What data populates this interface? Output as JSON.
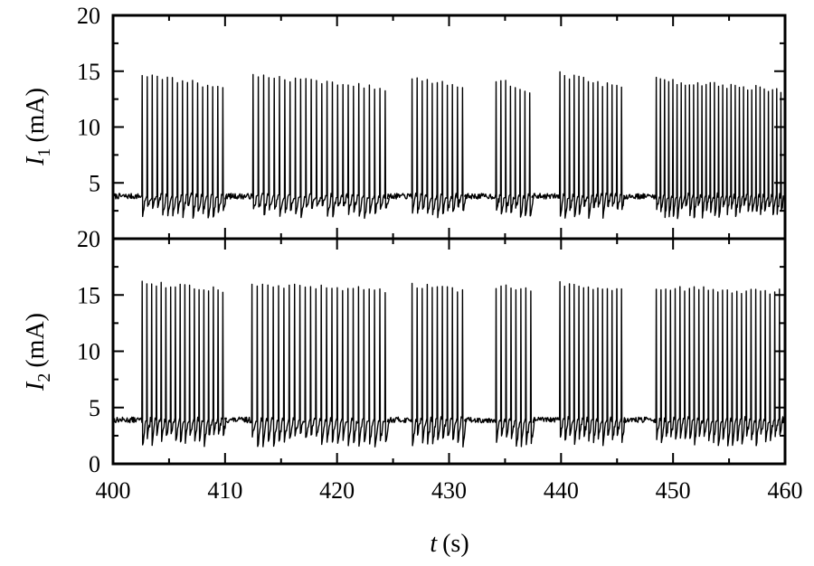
{
  "chart_data": [
    {
      "type": "line",
      "panel": "top",
      "ylabel": {
        "symbol": "I",
        "subscript": "1",
        "unit": "(mA)"
      },
      "xlim": [
        400,
        460
      ],
      "ylim": [
        0,
        20
      ],
      "yticks": [
        20,
        15,
        10,
        5
      ],
      "ytick_labels": [
        "20",
        "15",
        "10",
        "5"
      ],
      "baseline": 3.8,
      "spike_peak_range": [
        12.5,
        15.0
      ],
      "spike_trough": 1.8,
      "bursts": [
        {
          "start": 402.6,
          "end": 409.8,
          "spikes": 17,
          "peak": 14.7
        },
        {
          "start": 412.5,
          "end": 424.3,
          "spikes": 26,
          "peak": 14.6
        },
        {
          "start": 426.7,
          "end": 431.2,
          "spikes": 11,
          "peak": 14.5
        },
        {
          "start": 434.2,
          "end": 437.2,
          "spikes": 8,
          "peak": 14.2
        },
        {
          "start": 439.9,
          "end": 445.4,
          "spikes": 14,
          "peak": 14.7
        },
        {
          "start": 448.5,
          "end": 460.0,
          "spikes": 32,
          "peak": 14.2
        }
      ]
    },
    {
      "type": "line",
      "panel": "bottom",
      "ylabel": {
        "symbol": "I",
        "subscript": "2",
        "unit": "(mA)"
      },
      "xlabel": {
        "symbol": "t",
        "unit": "(s)"
      },
      "xlim": [
        400,
        460
      ],
      "ylim": [
        0,
        20
      ],
      "xticks": [
        400,
        410,
        420,
        430,
        440,
        450,
        460
      ],
      "xtick_labels": [
        "400",
        "410",
        "420",
        "430",
        "440",
        "450",
        "460"
      ],
      "yticks": [
        20,
        15,
        10,
        5,
        0
      ],
      "ytick_labels": [
        "20",
        "15",
        "10",
        "5",
        "0"
      ],
      "baseline": 3.9,
      "spike_peak_range": [
        15.0,
        16.3
      ],
      "spike_trough": 1.5,
      "bursts": [
        {
          "start": 402.6,
          "end": 409.8,
          "spikes": 18,
          "peak": 16.0
        },
        {
          "start": 412.4,
          "end": 424.3,
          "spikes": 26,
          "peak": 15.9
        },
        {
          "start": 426.7,
          "end": 431.2,
          "spikes": 11,
          "peak": 15.9
        },
        {
          "start": 434.2,
          "end": 437.3,
          "spikes": 8,
          "peak": 15.8
        },
        {
          "start": 439.9,
          "end": 445.4,
          "spikes": 14,
          "peak": 16.0
        },
        {
          "start": 448.5,
          "end": 459.5,
          "spikes": 27,
          "peak": 15.6
        }
      ]
    }
  ]
}
